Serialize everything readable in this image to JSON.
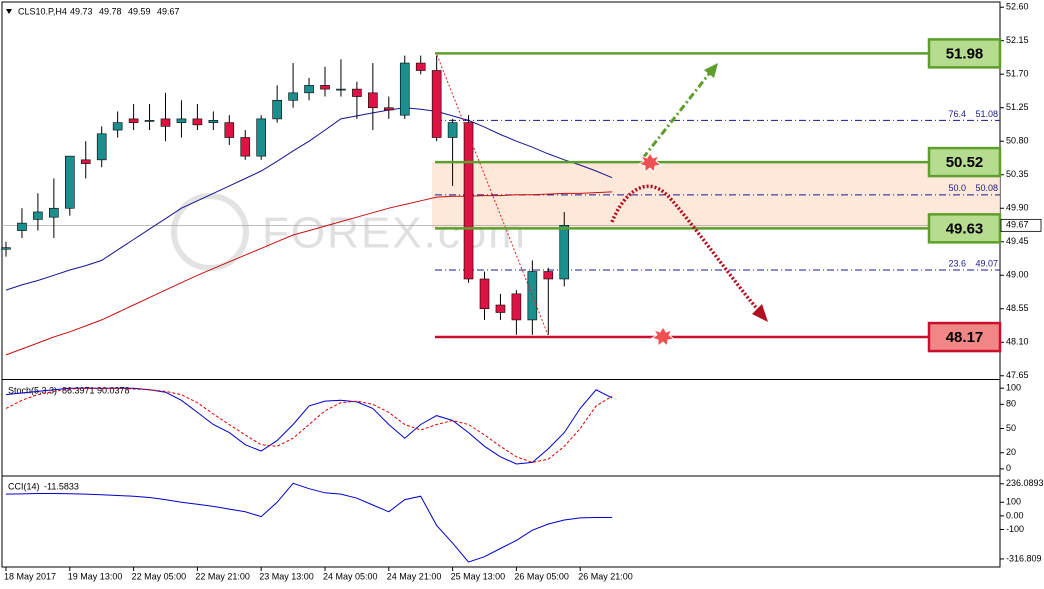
{
  "chart_data": [
    {
      "type": "candlestick",
      "title": "CLS10.P,H4",
      "header_values": [
        49.73,
        49.78,
        49.59,
        49.67
      ],
      "watermark": "FOREX.com",
      "categories": [
        "18 May 2017",
        null,
        null,
        null,
        "19 May 13:00",
        null,
        null,
        null,
        "22 May 05:00",
        null,
        null,
        null,
        "22 May 21:00",
        null,
        null,
        null,
        "23 May 13:00",
        null,
        null,
        null,
        "24 May 05:00",
        null,
        null,
        null,
        "24 May 21:00",
        null,
        null,
        null,
        "25 May 13:00",
        null,
        null,
        null,
        "26 May 05:00",
        null,
        null,
        null,
        "26 May 21:00",
        null,
        null
      ],
      "open": [
        49.35,
        49.6,
        49.75,
        49.78,
        49.9,
        50.55,
        50.55,
        50.95,
        51.1,
        51.08,
        51.1,
        51.05,
        51.1,
        51.05,
        51.05,
        50.85,
        50.6,
        51.1,
        51.35,
        51.45,
        51.55,
        51.5,
        51.5,
        51.45,
        51.25,
        51.15,
        51.85,
        51.75,
        50.85,
        51.05,
        48.95,
        48.6,
        48.75,
        48.4,
        49.05,
        48.95,
        null,
        null,
        null
      ],
      "high": [
        49.45,
        49.9,
        50.1,
        50.3,
        50.6,
        50.8,
        51.0,
        51.2,
        51.3,
        51.3,
        51.45,
        51.35,
        51.3,
        51.2,
        51.15,
        50.95,
        51.15,
        51.55,
        51.85,
        51.65,
        51.8,
        51.9,
        51.6,
        51.85,
        51.4,
        51.95,
        51.95,
        51.95,
        51.1,
        51.15,
        49.05,
        48.75,
        48.8,
        49.2,
        49.1,
        49.85,
        null,
        null,
        null
      ],
      "low": [
        49.25,
        49.5,
        49.6,
        49.5,
        49.8,
        50.3,
        50.45,
        50.85,
        50.95,
        50.95,
        50.8,
        50.85,
        50.95,
        50.95,
        50.75,
        50.55,
        50.55,
        51.05,
        51.25,
        51.35,
        51.4,
        51.4,
        51.1,
        50.95,
        51.1,
        51.1,
        51.7,
        50.8,
        50.2,
        48.9,
        48.4,
        48.4,
        48.2,
        48.2,
        48.2,
        48.85,
        null,
        null,
        null
      ],
      "close": [
        49.37,
        49.7,
        49.85,
        49.9,
        50.6,
        50.5,
        50.9,
        51.05,
        51.05,
        51.08,
        51.0,
        51.1,
        51.02,
        51.08,
        50.85,
        50.6,
        51.1,
        51.35,
        51.45,
        51.55,
        51.5,
        51.5,
        51.4,
        51.25,
        51.22,
        51.85,
        51.75,
        50.85,
        51.05,
        48.95,
        48.55,
        48.5,
        48.4,
        49.05,
        48.95,
        49.67,
        null,
        null,
        null
      ],
      "up_color": "#1b8e8e",
      "down_color": "#dc1443",
      "moving_averages": [
        {
          "color": "#14148c",
          "values": [
            48.8,
            48.87,
            48.93,
            49.0,
            49.07,
            49.13,
            49.2,
            49.34,
            49.48,
            49.62,
            49.76,
            49.9,
            50.0,
            50.1,
            50.2,
            50.3,
            50.4,
            50.53,
            50.67,
            50.8,
            50.95,
            51.1,
            51.14,
            51.18,
            51.22,
            51.25,
            51.23,
            51.2,
            51.14,
            51.08,
            50.99,
            50.89,
            50.8,
            50.72,
            50.63,
            50.55,
            50.48,
            50.4,
            50.31
          ]
        },
        {
          "color": "#c81010",
          "values": [
            47.93,
            48.01,
            48.09,
            48.17,
            48.24,
            48.32,
            48.4,
            48.5,
            48.6,
            48.7,
            48.8,
            48.9,
            49.0,
            49.09,
            49.18,
            49.27,
            49.36,
            49.45,
            49.54,
            49.6,
            49.66,
            49.72,
            49.78,
            49.84,
            49.9,
            49.95,
            50.0,
            50.05,
            50.06,
            50.06,
            50.07,
            50.07,
            50.08,
            50.08,
            50.09,
            50.1,
            50.1,
            50.11,
            50.12
          ]
        }
      ],
      "levels": [
        {
          "value": 51.98,
          "color": "#5e9e2c",
          "fill": "#b6dc8f"
        },
        {
          "value": 50.52,
          "color": "#5e9e2c",
          "fill": "#b6dc8f"
        },
        {
          "value": 49.63,
          "color": "#5e9e2c",
          "fill": "#b6dc8f"
        },
        {
          "value": 48.17,
          "color": "#c8102e",
          "fill": "#f08686"
        }
      ],
      "fib": [
        {
          "ratio": "76.4",
          "price": 51.08
        },
        {
          "ratio": "50.0",
          "price": 50.08
        },
        {
          "ratio": "23.6",
          "price": 49.07
        }
      ],
      "ylim": [
        47.62,
        52.67
      ],
      "yticks": [
        {
          "value": 52.6,
          "label": "52.60"
        },
        52.15,
        {
          "value": 51.7,
          "label": "51.70"
        },
        51.25,
        {
          "value": 50.8,
          "label": "50.80"
        },
        50.35,
        {
          "value": 49.9,
          "label": "49.90"
        },
        49.45,
        {
          "value": 49,
          "label": "49.00"
        },
        48.55,
        {
          "value": 48.1,
          "label": "48.10"
        },
        47.65
      ]
    },
    {
      "type": "line",
      "title": "Stoch(5,3,3)",
      "header_values": [
        86.3971,
        90.0378
      ],
      "ylim": [
        -7.6,
        108.9
      ],
      "yticks": [
        100,
        80,
        50,
        20,
        0
      ],
      "series": [
        {
          "color": "#0000c8",
          "values": [
            92,
            94,
            96,
            98,
            100,
            100,
            100,
            100,
            100,
            98,
            95,
            85,
            70,
            55,
            45,
            30,
            22,
            35,
            55,
            78,
            84,
            85,
            83,
            75,
            55,
            38,
            55,
            66,
            60,
            45,
            28,
            15,
            6,
            8,
            25,
            45,
            75,
            98,
            88
          ]
        },
        {
          "color": "#e00000",
          "dashed": true,
          "values": [
            75,
            85,
            92,
            96,
            99,
            100,
            100,
            100,
            99,
            98,
            96,
            92,
            82,
            68,
            55,
            42,
            30,
            28,
            38,
            55,
            72,
            82,
            84,
            80,
            70,
            55,
            48,
            55,
            60,
            55,
            42,
            28,
            15,
            8,
            12,
            28,
            50,
            78,
            90
          ]
        }
      ]
    },
    {
      "type": "line",
      "title": "CCI(14)",
      "header_values": [
        -11.5833
      ],
      "ylim": [
        -376,
        286
      ],
      "yticks": [
        236.0893,
        100,
        {
          "value": 0,
          "label": "0.00"
        },
        -100,
        -316.809
      ],
      "series": [
        {
          "color": "#0000c8",
          "values": [
            160,
            162,
            165,
            165,
            163,
            160,
            155,
            150,
            145,
            135,
            120,
            100,
            85,
            70,
            50,
            30,
            -5,
            100,
            240,
            200,
            170,
            160,
            130,
            80,
            30,
            120,
            145,
            -70,
            -200,
            -340,
            -300,
            -240,
            -180,
            -105,
            -60,
            -30,
            -15,
            -12,
            -12
          ]
        }
      ]
    }
  ]
}
